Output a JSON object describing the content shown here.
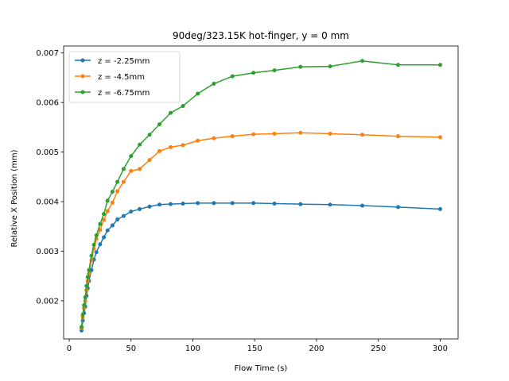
{
  "chart_data": {
    "type": "line",
    "title": "90deg/323.15K hot-finger, y = 0 mm",
    "xlabel": "Flow Time (s)",
    "ylabel": "Relative X Position (mm)",
    "xlim": [
      -4.5,
      314.5
    ],
    "ylim": [
      0.00123,
      0.00714
    ],
    "xticks": [
      "0",
      "50",
      "100",
      "150",
      "200",
      "250",
      "300"
    ],
    "yticks": [
      "0.002",
      "0.003",
      "0.004",
      "0.005",
      "0.006",
      "0.007"
    ],
    "grid": false,
    "legend": "upper left",
    "x": [
      10,
      11,
      12,
      13,
      14,
      15,
      16,
      18,
      20,
      22,
      25,
      28,
      31,
      35,
      39,
      44,
      50,
      57,
      65,
      73,
      82,
      92,
      104,
      117,
      132,
      149,
      166,
      187,
      211,
      237,
      266,
      300
    ],
    "series": [
      {
        "name": "z = -2.25mm",
        "color": "#1f77b4",
        "values": [
          0.0014,
          0.0016,
          0.00175,
          0.00188,
          0.0021,
          0.00225,
          0.0024,
          0.00262,
          0.00283,
          0.00298,
          0.00314,
          0.00328,
          0.00342,
          0.00352,
          0.00364,
          0.00371,
          0.0038,
          0.00385,
          0.0039,
          0.00394,
          0.00395,
          0.00396,
          0.00397,
          0.00397,
          0.00397,
          0.00397,
          0.00396,
          0.00395,
          0.00394,
          0.00392,
          0.00389,
          0.00385
        ]
      },
      {
        "name": "z = -4.5mm",
        "color": "#ff7f0e",
        "values": [
          0.00145,
          0.00167,
          0.00185,
          0.002,
          0.00222,
          0.0024,
          0.00255,
          0.00282,
          0.00305,
          0.00325,
          0.00343,
          0.00363,
          0.00381,
          0.00398,
          0.00421,
          0.0044,
          0.00462,
          0.00466,
          0.00484,
          0.00502,
          0.0051,
          0.00514,
          0.00523,
          0.00528,
          0.00532,
          0.00536,
          0.00537,
          0.00539,
          0.00537,
          0.00535,
          0.00532,
          0.0053
        ]
      },
      {
        "name": "z = -6.75mm",
        "color": "#2ca02c",
        "values": [
          0.00147,
          0.00172,
          0.00191,
          0.00207,
          0.0023,
          0.00248,
          0.00262,
          0.00291,
          0.00313,
          0.00332,
          0.00355,
          0.00375,
          0.00402,
          0.0042,
          0.0044,
          0.00466,
          0.00492,
          0.00515,
          0.00535,
          0.00556,
          0.00579,
          0.00593,
          0.00618,
          0.00638,
          0.00653,
          0.0066,
          0.00665,
          0.00672,
          0.00673,
          0.00684,
          0.00676,
          0.00676
        ]
      }
    ]
  }
}
